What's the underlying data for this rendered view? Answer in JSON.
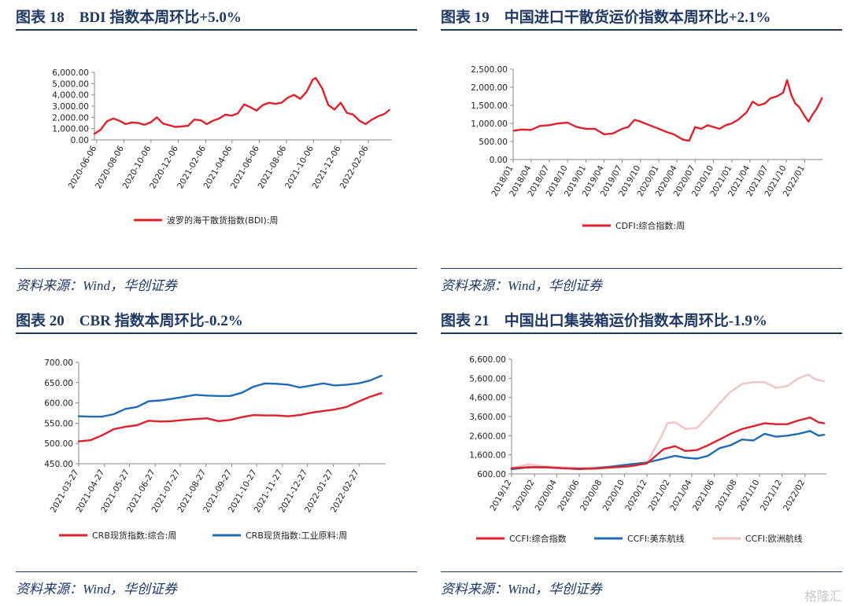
{
  "panels": [
    {
      "title": "图表 18　BDI 指数本周环比+5.0%",
      "source": "资料来源：Wind，华创证券",
      "chart_data": {
        "type": "line",
        "title": "图表 18　BDI 指数本周环比+5.0%",
        "ylim": [
          0,
          6000
        ],
        "yticks": [
          0,
          1000,
          2000,
          3000,
          4000,
          5000,
          6000
        ],
        "ytick_labels": [
          "0.00",
          "1,000.00",
          "2,000.00",
          "3,000.00",
          "4,000.00",
          "5,000.00",
          "6,000.00"
        ],
        "xlim": [
          "2020-06-01",
          "2022-03-31"
        ],
        "xticks": [
          "2020-06-06",
          "2020-08-06",
          "2020-10-06",
          "2020-12-06",
          "2021-02-06",
          "2021-04-06",
          "2021-06-06",
          "2021-08-06",
          "2021-10-06",
          "2021-12-06",
          "2022-02-06"
        ],
        "grid": false,
        "legend_position": "bottom",
        "series": [
          {
            "name": "波罗的海干散货指数(BDI):周",
            "color": "#e0202a",
            "x": [
              "2020-06-01",
              "2020-06-15",
              "2020-06-29",
              "2020-07-13",
              "2020-07-27",
              "2020-08-10",
              "2020-08-24",
              "2020-09-07",
              "2020-09-21",
              "2020-10-05",
              "2020-10-19",
              "2020-11-02",
              "2020-11-16",
              "2020-11-30",
              "2020-12-14",
              "2020-12-28",
              "2021-01-11",
              "2021-01-25",
              "2021-02-08",
              "2021-02-22",
              "2021-03-08",
              "2021-03-22",
              "2021-04-05",
              "2021-04-19",
              "2021-05-03",
              "2021-05-17",
              "2021-05-31",
              "2021-06-14",
              "2021-06-28",
              "2021-07-12",
              "2021-07-26",
              "2021-08-09",
              "2021-08-23",
              "2021-09-06",
              "2021-09-20",
              "2021-10-04",
              "2021-10-11",
              "2021-10-25",
              "2021-11-08",
              "2021-11-22",
              "2021-12-06",
              "2021-12-20",
              "2022-01-03",
              "2022-01-17",
              "2022-01-31",
              "2022-02-14",
              "2022-02-28",
              "2022-03-14",
              "2022-03-25"
            ],
            "y": [
              550,
              900,
              1650,
              1900,
              1700,
              1400,
              1550,
              1500,
              1350,
              1550,
              2000,
              1450,
              1300,
              1150,
              1200,
              1250,
              1800,
              1750,
              1400,
              1700,
              1900,
              2250,
              2150,
              2350,
              3150,
              2900,
              2600,
              3100,
              3300,
              3200,
              3300,
              3750,
              4000,
              3650,
              4250,
              5350,
              5500,
              4600,
              3100,
              2700,
              3300,
              2400,
              2250,
              1700,
              1400,
              1800,
              2100,
              2300,
              2650
            ]
          }
        ]
      }
    },
    {
      "title": "图表 19　中国进口干散货运价指数本周环比+2.1%",
      "source": "资料来源：Wind，华创证券",
      "chart_data": {
        "type": "line",
        "title": "图表 19　中国进口干散货运价指数本周环比+2.1%",
        "ylim": [
          0,
          2500
        ],
        "yticks": [
          0,
          500,
          1000,
          1500,
          2000,
          2500
        ],
        "ytick_labels": [
          "0.00",
          "500.00",
          "1,000.00",
          "1,500.00",
          "2,000.00",
          "2,500.00"
        ],
        "xlim": [
          "2018-01-01",
          "2022-03-31"
        ],
        "xticks": [
          "2018/01",
          "2018/04",
          "2018/07",
          "2018/10",
          "2019/01",
          "2019/04",
          "2019/07",
          "2019/10",
          "2020/01",
          "2020/04",
          "2020/07",
          "2020/10",
          "2021/01",
          "2021/04",
          "2021/07",
          "2021/10",
          "2022/01"
        ],
        "grid": false,
        "legend_position": "bottom",
        "series": [
          {
            "name": "CDFI:综合指数:周",
            "color": "#e0202a",
            "x": [
              "2018-01-05",
              "2018-02-15",
              "2018-04-01",
              "2018-05-15",
              "2018-07-01",
              "2018-08-15",
              "2018-10-01",
              "2018-11-15",
              "2019-01-01",
              "2019-02-15",
              "2019-04-01",
              "2019-05-15",
              "2019-07-01",
              "2019-08-01",
              "2019-09-01",
              "2019-10-01",
              "2019-11-15",
              "2020-01-01",
              "2020-02-15",
              "2020-03-15",
              "2020-05-01",
              "2020-06-01",
              "2020-07-01",
              "2020-08-01",
              "2020-09-01",
              "2020-10-01",
              "2020-11-01",
              "2020-12-01",
              "2021-01-01",
              "2021-02-01",
              "2021-03-15",
              "2021-04-15",
              "2021-05-15",
              "2021-06-15",
              "2021-07-15",
              "2021-08-15",
              "2021-09-15",
              "2021-10-05",
              "2021-10-25",
              "2021-11-15",
              "2021-12-05",
              "2022-01-01",
              "2022-01-20",
              "2022-02-10",
              "2022-03-01",
              "2022-03-20",
              "2022-03-28"
            ],
            "y": [
              800,
              830,
              820,
              930,
              950,
              1000,
              1020,
              900,
              850,
              850,
              700,
              720,
              850,
              900,
              1100,
              1050,
              950,
              850,
              750,
              700,
              550,
              520,
              900,
              850,
              950,
              900,
              850,
              950,
              1000,
              1100,
              1300,
              1600,
              1500,
              1550,
              1700,
              1750,
              1850,
              2200,
              1800,
              1550,
              1450,
              1200,
              1050,
              1250,
              1400,
              1600,
              1700
            ]
          }
        ]
      }
    },
    {
      "title": "图表 20　CBR 指数本周环比-0.2%",
      "source": "资料来源：Wind，华创证券",
      "chart_data": {
        "type": "line",
        "title": "图表 20　CBR 指数本周环比-0.2%",
        "ylim": [
          450,
          700
        ],
        "yticks": [
          450,
          500,
          550,
          600,
          650,
          700
        ],
        "ytick_labels": [
          "450.00",
          "500.00",
          "550.00",
          "600.00",
          "650.00",
          "700.00"
        ],
        "xlim": [
          "2021-03-27",
          "2022-03-31"
        ],
        "xticks": [
          "2021-03-27",
          "2021-04-27",
          "2021-05-27",
          "2021-06-27",
          "2021-07-27",
          "2021-08-27",
          "2021-09-27",
          "2021-10-27",
          "2021-11-27",
          "2021-12-27",
          "2022-01-27",
          "2022-02-27"
        ],
        "grid": false,
        "legend_position": "bottom",
        "series": [
          {
            "name": "CRB现货指数:综合:周",
            "color": "#e0202a",
            "x": [
              "2021-03-27",
              "2021-04-10",
              "2021-04-24",
              "2021-05-08",
              "2021-05-22",
              "2021-06-05",
              "2021-06-19",
              "2021-07-03",
              "2021-07-17",
              "2021-07-31",
              "2021-08-14",
              "2021-08-28",
              "2021-09-11",
              "2021-09-25",
              "2021-10-09",
              "2021-10-23",
              "2021-11-06",
              "2021-11-20",
              "2021-12-04",
              "2021-12-18",
              "2022-01-01",
              "2022-01-15",
              "2022-01-29",
              "2022-02-12",
              "2022-02-26",
              "2022-03-12",
              "2022-03-26"
            ],
            "y": [
              505,
              508,
              520,
              535,
              541,
              545,
              556,
              554,
              555,
              558,
              560,
              562,
              555,
              558,
              565,
              570,
              569,
              569,
              567,
              570,
              576,
              580,
              584,
              590,
              603,
              615,
              624
            ]
          },
          {
            "name": "CRB现货指数:工业原料:周",
            "color": "#1f6bb5",
            "x": [
              "2021-03-27",
              "2021-04-10",
              "2021-04-24",
              "2021-05-08",
              "2021-05-22",
              "2021-06-05",
              "2021-06-19",
              "2021-07-03",
              "2021-07-17",
              "2021-07-31",
              "2021-08-14",
              "2021-08-28",
              "2021-09-11",
              "2021-09-25",
              "2021-10-09",
              "2021-10-23",
              "2021-11-06",
              "2021-11-20",
              "2021-12-04",
              "2021-12-18",
              "2022-01-01",
              "2022-01-15",
              "2022-01-29",
              "2022-02-12",
              "2022-02-26",
              "2022-03-12",
              "2022-03-26"
            ],
            "y": [
              567,
              566,
              566,
              572,
              585,
              590,
              604,
              606,
              610,
              615,
              620,
              618,
              617,
              617,
              625,
              640,
              648,
              647,
              645,
              638,
              643,
              648,
              643,
              645,
              648,
              655,
              667
            ]
          }
        ]
      }
    },
    {
      "title": "图表 21　中国出口集装箱运价指数本周环比-1.9%",
      "source": "资料来源：Wind，华创证券",
      "chart_data": {
        "type": "line",
        "title": "图表 21　中国出口集装箱运价指数本周环比-1.9%",
        "ylim": [
          600,
          6600
        ],
        "yticks": [
          600,
          1600,
          2600,
          3600,
          4600,
          5600,
          6600
        ],
        "ytick_labels": [
          "600.00",
          "1,600.00",
          "2,600.00",
          "3,600.00",
          "4,600.00",
          "5,600.00",
          "6,600.00"
        ],
        "xlim": [
          "2019-12-01",
          "2022-03-31"
        ],
        "xticks": [
          "2019/12",
          "2020/02",
          "2020/04",
          "2020/06",
          "2020/08",
          "2020/10",
          "2020/12",
          "2021/02",
          "2021/04",
          "2021/06",
          "2021/08",
          "2021/10",
          "2021/12",
          "2022/02"
        ],
        "grid": false,
        "legend_position": "bottom",
        "series": [
          {
            "name": "CCFI:综合指数",
            "color": "#e0202a",
            "x": [
              "2019-12-01",
              "2020-01-15",
              "2020-03-01",
              "2020-04-15",
              "2020-06-01",
              "2020-07-15",
              "2020-09-01",
              "2020-10-15",
              "2020-12-01",
              "2021-01-15",
              "2021-02-15",
              "2021-03-15",
              "2021-04-15",
              "2021-05-15",
              "2021-06-15",
              "2021-07-15",
              "2021-08-15",
              "2021-09-15",
              "2021-10-15",
              "2021-11-15",
              "2021-12-15",
              "2022-01-15",
              "2022-02-15",
              "2022-03-10",
              "2022-03-25"
            ],
            "y": [
              900,
              950,
              950,
              900,
              880,
              880,
              950,
              1000,
              1150,
              1900,
              2050,
              1800,
              1850,
              2100,
              2400,
              2700,
              2950,
              3100,
              3250,
              3200,
              3200,
              3400,
              3550,
              3300,
              3250
            ]
          },
          {
            "name": "CCFI:美东航线",
            "color": "#1f6bb5",
            "x": [
              "2019-12-01",
              "2020-01-15",
              "2020-03-01",
              "2020-04-15",
              "2020-06-01",
              "2020-07-15",
              "2020-09-01",
              "2020-10-15",
              "2020-12-01",
              "2021-01-15",
              "2021-02-15",
              "2021-03-15",
              "2021-04-15",
              "2021-05-15",
              "2021-06-15",
              "2021-07-15",
              "2021-08-15",
              "2021-09-15",
              "2021-10-15",
              "2021-11-15",
              "2021-12-15",
              "2022-01-15",
              "2022-02-15",
              "2022-03-10",
              "2022-03-25"
            ],
            "y": [
              850,
              950,
              950,
              900,
              850,
              900,
              1000,
              1100,
              1200,
              1400,
              1550,
              1450,
              1400,
              1550,
              1950,
              2100,
              2400,
              2350,
              2700,
              2550,
              2600,
              2700,
              2850,
              2600,
              2650
            ]
          },
          {
            "name": "CCFI:欧洲航线",
            "color": "#f2c4c4",
            "x": [
              "2019-12-01",
              "2020-01-15",
              "2020-03-01",
              "2020-04-15",
              "2020-06-01",
              "2020-07-15",
              "2020-09-01",
              "2020-10-15",
              "2020-12-01",
              "2021-01-10",
              "2021-01-25",
              "2021-02-15",
              "2021-03-15",
              "2021-04-15",
              "2021-05-15",
              "2021-06-15",
              "2021-07-15",
              "2021-08-15",
              "2021-09-15",
              "2021-10-15",
              "2021-11-15",
              "2021-12-15",
              "2022-01-15",
              "2022-02-10",
              "2022-03-01",
              "2022-03-25"
            ],
            "y": [
              900,
              1100,
              1000,
              950,
              900,
              950,
              950,
              1050,
              1200,
              2600,
              3250,
              3300,
              2950,
              3000,
              3600,
              4300,
              4900,
              5300,
              5400,
              5400,
              5100,
              5200,
              5600,
              5800,
              5550,
              5450
            ]
          }
        ]
      }
    }
  ],
  "watermark": "格隆汇"
}
